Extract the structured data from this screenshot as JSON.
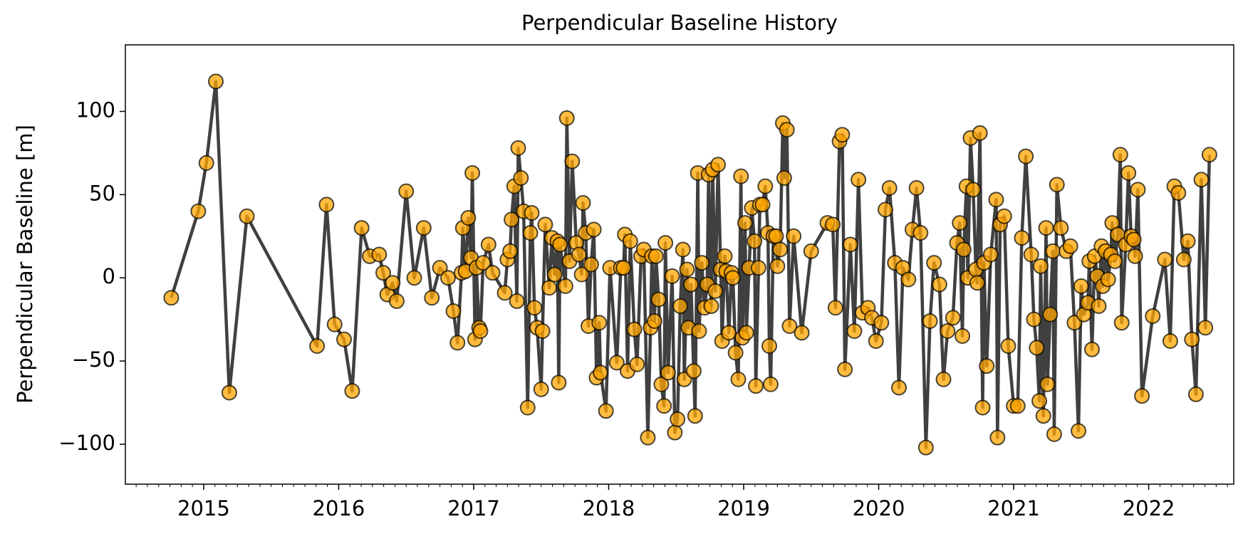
{
  "chart_data": {
    "type": "line",
    "title": "Perpendicular Baseline History",
    "y_label": "Perpendicular Baseline [m]",
    "line_color": "#404040",
    "marker_color": "#ffa500",
    "xlim": [
      2014.42,
      2022.63
    ],
    "xticks": [
      2015,
      2016,
      2017,
      2018,
      2019,
      2020,
      2021,
      2022
    ],
    "ylim": [
      -124,
      140
    ],
    "yticks": [
      {
        "value": -100,
        "label": "−100"
      },
      {
        "value": -50,
        "label": "−50"
      },
      0,
      50,
      100
    ],
    "grid": false,
    "x": [
      2014.76,
      2014.96,
      2015.02,
      2015.09,
      2015.19,
      2015.32,
      2015.84,
      2015.91,
      2015.97,
      2016.04,
      2016.1,
      2016.17,
      2016.23,
      2016.3,
      2016.33,
      2016.36,
      2016.4,
      2016.43,
      2016.5,
      2016.56,
      2016.63,
      2016.69,
      2016.75,
      2016.81,
      2016.85,
      2016.88,
      2016.91,
      2016.92,
      2016.94,
      2016.96,
      2016.98,
      2016.99,
      2017.01,
      2017.02,
      2017.04,
      2017.05,
      2017.07,
      2017.11,
      2017.14,
      2017.23,
      2017.25,
      2017.27,
      2017.28,
      2017.3,
      2017.32,
      2017.33,
      2017.35,
      2017.37,
      2017.4,
      2017.42,
      2017.43,
      2017.45,
      2017.47,
      2017.5,
      2017.51,
      2017.53,
      2017.56,
      2017.58,
      2017.6,
      2017.62,
      2017.63,
      2017.64,
      2017.68,
      2017.69,
      2017.71,
      2017.73,
      2017.76,
      2017.78,
      2017.8,
      2017.81,
      2017.83,
      2017.85,
      2017.87,
      2017.89,
      2017.91,
      2017.93,
      2017.94,
      2017.98,
      2018.01,
      2018.06,
      2018.09,
      2018.11,
      2018.12,
      2018.14,
      2018.16,
      2018.19,
      2018.21,
      2018.24,
      2018.26,
      2018.29,
      2018.31,
      2018.32,
      2018.34,
      2018.35,
      2018.37,
      2018.39,
      2018.41,
      2018.42,
      2018.44,
      2018.47,
      2018.49,
      2018.51,
      2018.53,
      2018.55,
      2018.56,
      2018.58,
      2018.59,
      2018.61,
      2018.63,
      2018.64,
      2018.66,
      2018.67,
      2018.69,
      2018.71,
      2018.73,
      2018.74,
      2018.76,
      2018.77,
      2018.79,
      2018.81,
      2018.83,
      2018.84,
      2018.86,
      2018.87,
      2018.89,
      2018.91,
      2018.92,
      2018.94,
      2018.96,
      2018.98,
      2018.99,
      2019.01,
      2019.02,
      2019.04,
      2019.06,
      2019.08,
      2019.09,
      2019.11,
      2019.12,
      2019.14,
      2019.16,
      2019.18,
      2019.19,
      2019.2,
      2019.22,
      2019.24,
      2019.25,
      2019.27,
      2019.29,
      2019.3,
      2019.32,
      2019.34,
      2019.37,
      2019.43,
      2019.5,
      2019.62,
      2019.66,
      2019.68,
      2019.71,
      2019.73,
      2019.75,
      2019.79,
      2019.82,
      2019.85,
      2019.88,
      2019.92,
      2019.95,
      2019.98,
      2020.02,
      2020.05,
      2020.08,
      2020.12,
      2020.15,
      2020.18,
      2020.22,
      2020.25,
      2020.28,
      2020.31,
      2020.35,
      2020.38,
      2020.41,
      2020.45,
      2020.48,
      2020.51,
      2020.55,
      2020.58,
      2020.6,
      2020.62,
      2020.63,
      2020.65,
      2020.66,
      2020.68,
      2020.7,
      2020.72,
      2020.73,
      2020.75,
      2020.77,
      2020.78,
      2020.8,
      2020.83,
      2020.87,
      2020.88,
      2020.9,
      2020.93,
      2020.96,
      2021.0,
      2021.03,
      2021.06,
      2021.09,
      2021.13,
      2021.15,
      2021.17,
      2021.19,
      2021.2,
      2021.22,
      2021.24,
      2021.25,
      2021.27,
      2021.29,
      2021.3,
      2021.32,
      2021.35,
      2021.39,
      2021.42,
      2021.45,
      2021.48,
      2021.5,
      2021.52,
      2021.55,
      2021.56,
      2021.58,
      2021.6,
      2021.62,
      2021.63,
      2021.65,
      2021.66,
      2021.68,
      2021.7,
      2021.72,
      2021.73,
      2021.75,
      2021.77,
      2021.79,
      2021.8,
      2021.83,
      2021.85,
      2021.87,
      2021.89,
      2021.9,
      2021.92,
      2021.95,
      2022.03,
      2022.12,
      2022.16,
      2022.19,
      2022.22,
      2022.26,
      2022.29,
      2022.32,
      2022.35,
      2022.39,
      2022.42,
      2022.45
    ],
    "values": [
      -12,
      40,
      69,
      118,
      -69,
      37,
      -41,
      44,
      -28,
      -37,
      -68,
      30,
      13,
      14,
      3,
      -10,
      -3,
      -14,
      52,
      0,
      30,
      -12,
      6,
      0,
      -20,
      -39,
      3,
      30,
      4,
      36,
      12,
      63,
      -37,
      6,
      -30,
      -32,
      9,
      20,
      3,
      -9,
      11,
      16,
      35,
      55,
      -14,
      78,
      60,
      40,
      -78,
      27,
      39,
      -18,
      -30,
      -67,
      -32,
      32,
      -6,
      24,
      2,
      22,
      -63,
      20,
      -5,
      96,
      10,
      70,
      21,
      14,
      2,
      45,
      27,
      -29,
      8,
      29,
      -60,
      -27,
      -57,
      -80,
      6,
      -51,
      6,
      6,
      26,
      -56,
      22,
      -31,
      -52,
      13,
      17,
      -96,
      -30,
      13,
      -26,
      13,
      -13,
      -64,
      -77,
      21,
      -57,
      1,
      -93,
      -85,
      -17,
      17,
      -61,
      5,
      -30,
      -4,
      -56,
      -83,
      63,
      -32,
      9,
      -18,
      -4,
      62,
      -17,
      65,
      -8,
      68,
      5,
      -38,
      13,
      4,
      -33,
      3,
      0,
      -45,
      -61,
      61,
      -36,
      33,
      -33,
      6,
      42,
      22,
      -65,
      6,
      44,
      44,
      55,
      27,
      -41,
      -64,
      25,
      25,
      7,
      17,
      93,
      60,
      89,
      -29,
      25,
      -33,
      16,
      33,
      32,
      -18,
      82,
      86,
      -55,
      20,
      -32,
      59,
      -21,
      -18,
      -24,
      -38,
      -27,
      41,
      54,
      9,
      -66,
      6,
      -1,
      29,
      54,
      27,
      -102,
      -26,
      9,
      -4,
      -61,
      -32,
      -24,
      21,
      33,
      -35,
      17,
      55,
      0,
      84,
      53,
      5,
      -3,
      87,
      -78,
      9,
      -53,
      14,
      47,
      -96,
      32,
      37,
      -41,
      -77,
      -77,
      24,
      73,
      14,
      -25,
      -42,
      -74,
      7,
      -83,
      30,
      -64,
      -22,
      16,
      -94,
      56,
      30,
      16,
      19,
      -27,
      -92,
      -5,
      -22,
      -15,
      10,
      -43,
      13,
      1,
      -17,
      19,
      -5,
      16,
      -1,
      14,
      33,
      10,
      26,
      74,
      -27,
      20,
      63,
      25,
      23,
      13,
      53,
      -71,
      -23,
      11,
      -38,
      55,
      51,
      11,
      22,
      -37,
      -70,
      59,
      -30,
      74
    ]
  }
}
